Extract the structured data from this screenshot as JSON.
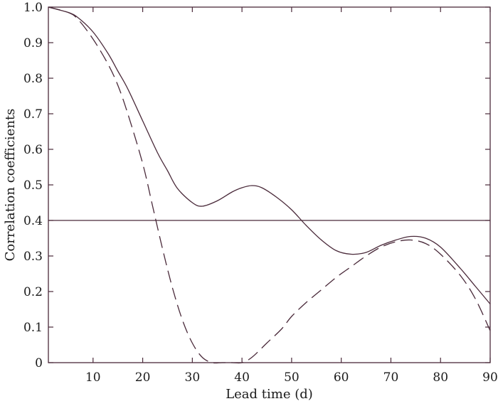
{
  "chart_data": {
    "type": "line",
    "title": "",
    "xlabel": "Lead time (d)",
    "ylabel": "Correlation coefficients",
    "xlim": [
      1,
      90
    ],
    "ylim": [
      0,
      1.0
    ],
    "x_ticks": [
      10,
      20,
      30,
      40,
      50,
      60,
      70,
      80,
      90
    ],
    "x_tick_labels": [
      "10",
      "20",
      "30",
      "40",
      "50",
      "60",
      "70",
      "80",
      "90"
    ],
    "y_ticks": [
      0,
      0.1,
      0.2,
      0.3,
      0.4,
      0.5,
      0.6,
      0.7,
      0.8,
      0.9,
      1.0
    ],
    "y_tick_labels": [
      "0",
      "0.1",
      "0.2",
      "0.3",
      "0.4",
      "0.5",
      "0.6",
      "0.7",
      "0.8",
      "0.9",
      "1.0"
    ],
    "grid": false,
    "legend": "none",
    "line_color": "#4a2a3a",
    "reference_lines": [
      {
        "axis": "y",
        "value": 0.4,
        "style": "solid"
      }
    ],
    "series": [
      {
        "style": "solid",
        "x": [
          1,
          5,
          7,
          10,
          13,
          15,
          17,
          20,
          23,
          25,
          27,
          30,
          32,
          35,
          38,
          40,
          42,
          44,
          47,
          50,
          53,
          56,
          59,
          62,
          65,
          68,
          71,
          74,
          77,
          80,
          84,
          87,
          90
        ],
        "y": [
          1.0,
          0.985,
          0.97,
          0.93,
          0.87,
          0.82,
          0.77,
          0.68,
          0.59,
          0.54,
          0.49,
          0.45,
          0.44,
          0.455,
          0.48,
          0.492,
          0.498,
          0.492,
          0.465,
          0.43,
          0.385,
          0.345,
          0.315,
          0.305,
          0.31,
          0.33,
          0.345,
          0.355,
          0.35,
          0.325,
          0.265,
          0.215,
          0.165
        ]
      },
      {
        "style": "dashed",
        "x": [
          1,
          5,
          7,
          10,
          13,
          15,
          17,
          20,
          22,
          24,
          26,
          28,
          30,
          32,
          34,
          36,
          38,
          40,
          42,
          45,
          48,
          50,
          53,
          56,
          59,
          62,
          65,
          68,
          71,
          74,
          77,
          80,
          84,
          87,
          90
        ],
        "y": [
          1.0,
          0.985,
          0.965,
          0.91,
          0.84,
          0.78,
          0.7,
          0.56,
          0.44,
          0.32,
          0.21,
          0.12,
          0.055,
          0.015,
          0.0,
          0.0,
          0.0,
          0.0,
          0.015,
          0.055,
          0.095,
          0.13,
          0.17,
          0.205,
          0.24,
          0.27,
          0.3,
          0.325,
          0.34,
          0.345,
          0.335,
          0.305,
          0.245,
          0.18,
          0.09
        ]
      }
    ]
  }
}
